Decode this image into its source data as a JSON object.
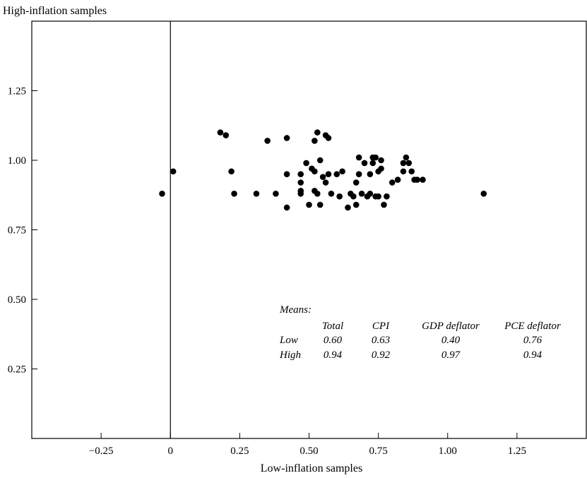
{
  "chart_data": {
    "type": "scatter",
    "title": "",
    "xlabel": "Low-inflation samples",
    "ylabel": "High-inflation samples",
    "xlim": [
      -0.5,
      1.5
    ],
    "ylim": [
      0,
      1.5
    ],
    "x_ticks": [
      -0.25,
      0,
      0.25,
      0.5,
      0.75,
      1.0,
      1.25
    ],
    "x_tick_labels": [
      "−0.25",
      "0",
      "0.25",
      "0.50",
      "0.75",
      "1.00",
      "1.25"
    ],
    "y_ticks": [
      0.25,
      0.5,
      0.75,
      1.0,
      1.25
    ],
    "y_tick_labels": [
      "0.25",
      "0.50",
      "0.75",
      "1.00",
      "1.25"
    ],
    "vertical_reference_line_x": 0,
    "grid": false,
    "marker_color": "#000000",
    "points": [
      {
        "x": -0.03,
        "y": 0.88
      },
      {
        "x": 0.01,
        "y": 0.96
      },
      {
        "x": 0.18,
        "y": 1.1
      },
      {
        "x": 0.2,
        "y": 1.09
      },
      {
        "x": 0.22,
        "y": 0.96
      },
      {
        "x": 0.23,
        "y": 0.88
      },
      {
        "x": 0.31,
        "y": 0.88
      },
      {
        "x": 0.35,
        "y": 1.07
      },
      {
        "x": 0.38,
        "y": 0.88
      },
      {
        "x": 0.42,
        "y": 1.08
      },
      {
        "x": 0.42,
        "y": 0.95
      },
      {
        "x": 0.42,
        "y": 0.83
      },
      {
        "x": 0.47,
        "y": 0.95
      },
      {
        "x": 0.47,
        "y": 0.92
      },
      {
        "x": 0.47,
        "y": 0.89
      },
      {
        "x": 0.47,
        "y": 0.88
      },
      {
        "x": 0.49,
        "y": 0.99
      },
      {
        "x": 0.5,
        "y": 0.84
      },
      {
        "x": 0.51,
        "y": 0.97
      },
      {
        "x": 0.52,
        "y": 1.07
      },
      {
        "x": 0.52,
        "y": 0.96
      },
      {
        "x": 0.52,
        "y": 0.89
      },
      {
        "x": 0.53,
        "y": 0.88
      },
      {
        "x": 0.53,
        "y": 1.1
      },
      {
        "x": 0.54,
        "y": 1.0
      },
      {
        "x": 0.54,
        "y": 0.84
      },
      {
        "x": 0.55,
        "y": 0.94
      },
      {
        "x": 0.56,
        "y": 0.92
      },
      {
        "x": 0.56,
        "y": 1.09
      },
      {
        "x": 0.57,
        "y": 1.08
      },
      {
        "x": 0.57,
        "y": 0.95
      },
      {
        "x": 0.58,
        "y": 0.88
      },
      {
        "x": 0.6,
        "y": 0.95
      },
      {
        "x": 0.61,
        "y": 0.87
      },
      {
        "x": 0.62,
        "y": 0.96
      },
      {
        "x": 0.64,
        "y": 0.83
      },
      {
        "x": 0.65,
        "y": 0.88
      },
      {
        "x": 0.66,
        "y": 0.87
      },
      {
        "x": 0.67,
        "y": 0.92
      },
      {
        "x": 0.67,
        "y": 0.84
      },
      {
        "x": 0.68,
        "y": 1.01
      },
      {
        "x": 0.68,
        "y": 0.95
      },
      {
        "x": 0.69,
        "y": 0.88
      },
      {
        "x": 0.7,
        "y": 0.99
      },
      {
        "x": 0.71,
        "y": 0.87
      },
      {
        "x": 0.72,
        "y": 0.88
      },
      {
        "x": 0.72,
        "y": 0.95
      },
      {
        "x": 0.73,
        "y": 1.01
      },
      {
        "x": 0.73,
        "y": 0.99
      },
      {
        "x": 0.74,
        "y": 0.87
      },
      {
        "x": 0.74,
        "y": 1.01
      },
      {
        "x": 0.75,
        "y": 0.96
      },
      {
        "x": 0.75,
        "y": 0.87
      },
      {
        "x": 0.76,
        "y": 1.0
      },
      {
        "x": 0.76,
        "y": 0.97
      },
      {
        "x": 0.77,
        "y": 0.84
      },
      {
        "x": 0.78,
        "y": 0.87
      },
      {
        "x": 0.8,
        "y": 0.92
      },
      {
        "x": 0.82,
        "y": 0.93
      },
      {
        "x": 0.84,
        "y": 0.96
      },
      {
        "x": 0.84,
        "y": 0.99
      },
      {
        "x": 0.85,
        "y": 1.01
      },
      {
        "x": 0.86,
        "y": 0.99
      },
      {
        "x": 0.87,
        "y": 0.96
      },
      {
        "x": 0.88,
        "y": 0.93
      },
      {
        "x": 0.89,
        "y": 0.93
      },
      {
        "x": 0.91,
        "y": 0.93
      },
      {
        "x": 1.13,
        "y": 0.88
      }
    ],
    "means_table": {
      "title": "Means:",
      "columns": [
        "Total",
        "CPI",
        "GDP deflator",
        "PCE deflator"
      ],
      "rows": [
        {
          "label": "Low",
          "values": [
            "0.60",
            "0.63",
            "0.40",
            "0.76"
          ]
        },
        {
          "label": "High",
          "values": [
            "0.94",
            "0.92",
            "0.97",
            "0.94"
          ]
        }
      ]
    }
  }
}
